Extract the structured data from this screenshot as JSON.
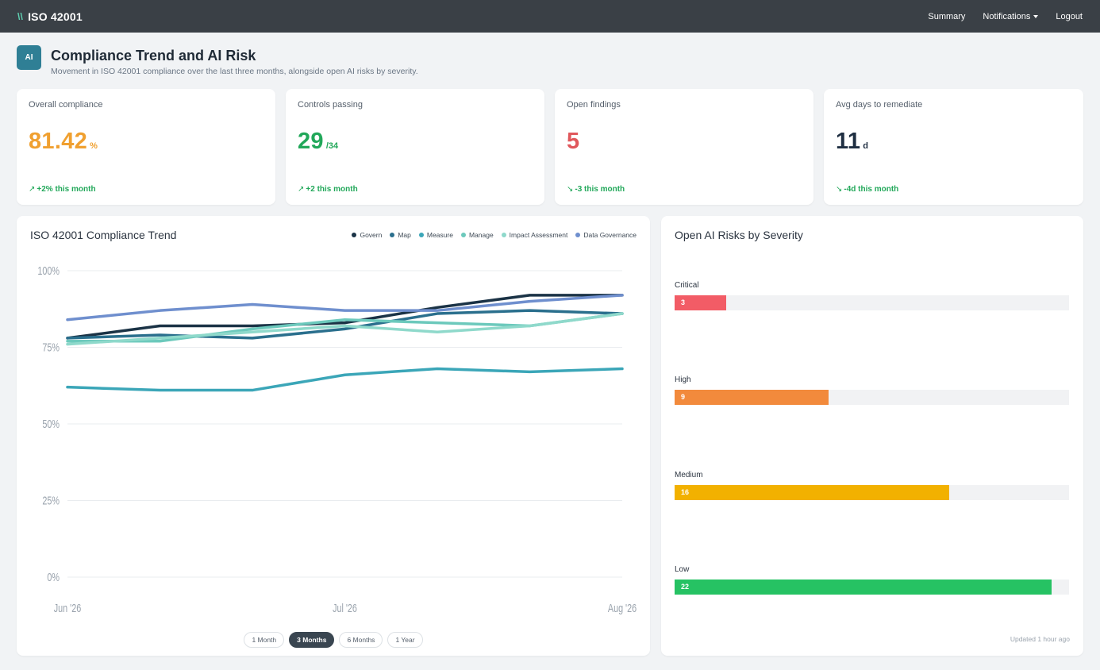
{
  "nav": {
    "brand_mark": "\\\\",
    "brand": "ISO 42001",
    "links": [
      {
        "label": "Summary"
      },
      {
        "label": "Notifications"
      },
      {
        "label": "Logout"
      }
    ]
  },
  "header": {
    "badge": "AI",
    "title": "Compliance Trend and AI Risk",
    "subtitle": "Movement in ISO 42001 compliance over the last three months, alongside open AI risks by severity."
  },
  "kpis": [
    {
      "label": "Overall compliance",
      "value": "81.42",
      "unit": "%",
      "delta": "+2% this month",
      "arrow": "↗",
      "color": "#f0a030"
    },
    {
      "label": "Controls passing",
      "value": "29",
      "unit": "/34",
      "delta": "+2 this month",
      "arrow": "↗",
      "color": "#22a85a"
    },
    {
      "label": "Open findings",
      "value": "5",
      "unit": "",
      "delta": "-3 this month",
      "arrow": "↘",
      "color": "#e0585c"
    },
    {
      "label": "Avg days to remediate",
      "value": "11",
      "unit": "d",
      "delta": "-4d this month",
      "arrow": "↘",
      "color": "#1f2f42"
    }
  ],
  "trend": {
    "title": "ISO 42001 Compliance Trend",
    "range_buttons": [
      {
        "label": "1 Month",
        "active": false
      },
      {
        "label": "3 Months",
        "active": true
      },
      {
        "label": "6 Months",
        "active": false
      },
      {
        "label": "1 Year",
        "active": false
      }
    ]
  },
  "chart_data": {
    "type": "line",
    "x": [
      "Jun '26",
      "",
      "",
      "Jul '26",
      "",
      "",
      "Aug '26"
    ],
    "x_tick_labels": [
      "Jun '26",
      "Jul '26",
      "Aug '26"
    ],
    "y_ticks": [
      "0%",
      "25%",
      "50%",
      "75%",
      "100%"
    ],
    "ylim": [
      0,
      100
    ],
    "grid": true,
    "legend_position": "top-right",
    "series": [
      {
        "name": "Govern",
        "color": "#1b3346",
        "values": [
          78,
          82,
          82,
          83,
          88,
          92,
          92
        ]
      },
      {
        "name": "Map",
        "color": "#2a6f8d",
        "values": [
          78,
          79,
          78,
          81,
          86,
          87,
          86
        ]
      },
      {
        "name": "Measure",
        "color": "#3ba6b8",
        "values": [
          62,
          61,
          61,
          66,
          68,
          67,
          68
        ]
      },
      {
        "name": "Manage",
        "color": "#6cc9bc",
        "values": [
          77,
          77,
          81,
          84,
          83,
          82,
          86
        ]
      },
      {
        "name": "Impact Assessment",
        "color": "#8fd9cb",
        "values": [
          76,
          78,
          80,
          82,
          80,
          82,
          86
        ]
      },
      {
        "name": "Data Governance",
        "color": "#6f8fce",
        "values": [
          84,
          87,
          89,
          87,
          87,
          90,
          92
        ]
      }
    ]
  },
  "risks": {
    "title": "Open AI Risks by Severity",
    "max": 23,
    "items": [
      {
        "label": "Critical",
        "value": 3,
        "color": "#f25c66"
      },
      {
        "label": "High",
        "value": 9,
        "color": "#f28a3c"
      },
      {
        "label": "Medium",
        "value": 16,
        "color": "#f2b100"
      },
      {
        "label": "Low",
        "value": 22,
        "color": "#26c263"
      }
    ],
    "updated": "Updated 1 hour ago"
  }
}
